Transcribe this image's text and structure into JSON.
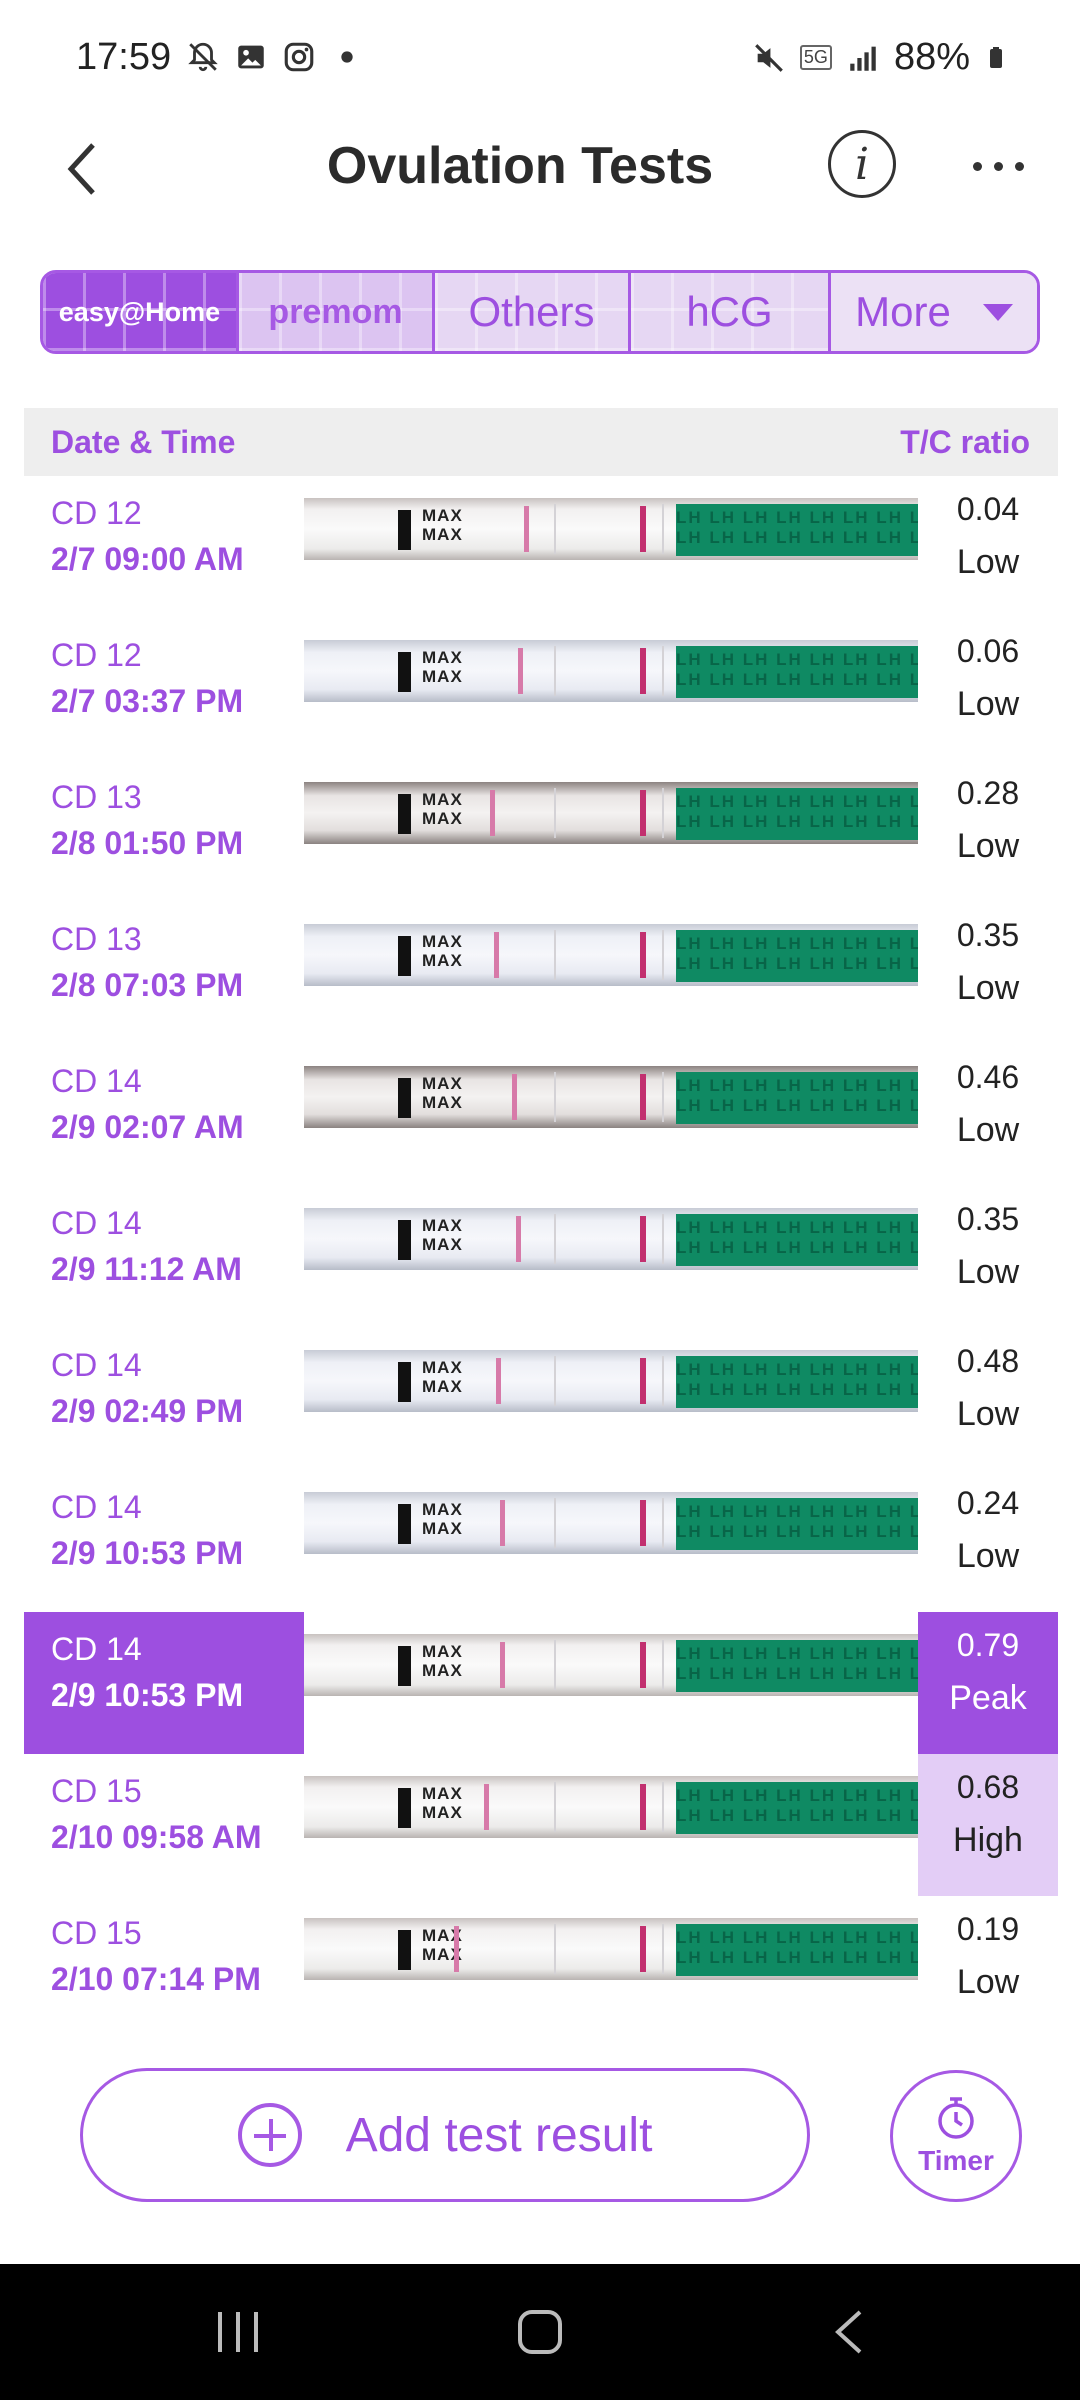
{
  "status_bar": {
    "time": "17:59",
    "battery": "88%",
    "network": "5G",
    "icons": [
      "notifications-off-icon",
      "gallery-icon",
      "instagram-icon",
      "dot-icon",
      "mute-icon",
      "signal-icon",
      "battery-icon"
    ]
  },
  "header": {
    "title": "Ovulation Tests"
  },
  "brand_tabs": {
    "easyhome": "easy@Home",
    "premom": "premom",
    "others": "Others",
    "hcg": "hCG",
    "more": "More"
  },
  "table": {
    "col_date": "Date & Time",
    "col_ratio": "T/C ratio"
  },
  "rows": [
    {
      "cd": "CD 12",
      "datetime": "2/7  09:00 AM",
      "ratio": "0.04",
      "level": "Low"
    },
    {
      "cd": "CD 12",
      "datetime": "2/7  03:37 PM",
      "ratio": "0.06",
      "level": "Low"
    },
    {
      "cd": "CD 13",
      "datetime": "2/8  01:50 PM",
      "ratio": "0.28",
      "level": "Low"
    },
    {
      "cd": "CD 13",
      "datetime": "2/8  07:03 PM",
      "ratio": "0.35",
      "level": "Low"
    },
    {
      "cd": "CD 14",
      "datetime": "2/9  02:07 AM",
      "ratio": "0.46",
      "level": "Low"
    },
    {
      "cd": "CD 14",
      "datetime": "2/9  11:12 AM",
      "ratio": "0.35",
      "level": "Low"
    },
    {
      "cd": "CD 14",
      "datetime": "2/9  02:49 PM",
      "ratio": "0.48",
      "level": "Low"
    },
    {
      "cd": "CD 14",
      "datetime": "2/9  10:53 PM",
      "ratio": "0.24",
      "level": "Low"
    },
    {
      "cd": "CD 14",
      "datetime": "2/9  10:53 PM",
      "ratio": "0.79",
      "level": "Peak"
    },
    {
      "cd": "CD 15",
      "datetime": "2/10  09:58 AM",
      "ratio": "0.68",
      "level": "High"
    },
    {
      "cd": "CD 15",
      "datetime": "2/10  07:14 PM",
      "ratio": "0.19",
      "level": "Low"
    }
  ],
  "strip": {
    "max": "MAX",
    "lh": "LH LH LH LH LH LH LH LH"
  },
  "actions": {
    "add_label": "Add test result",
    "timer_label": "Timer"
  },
  "colors": {
    "accent": "#9d4fe0",
    "accent_light": "#e3cdf6",
    "strip_green": "#0f8a63",
    "test_line": "#c2306f"
  }
}
